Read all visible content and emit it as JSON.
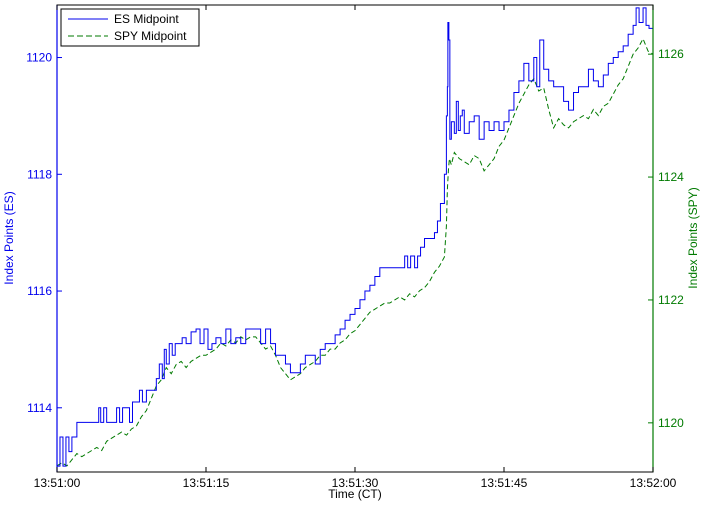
{
  "chart_data": {
    "type": "line",
    "xlabel": "Time (CT)",
    "ylabel_left": "Index Points (ES)",
    "ylabel_right": "Index Points (SPY)",
    "colors": {
      "ES": "#0000ee",
      "SPY": "#007a00"
    },
    "legend_position": "top-left",
    "grid": false,
    "x_ticks": [
      "13:51:00",
      "13:51:15",
      "13:51:30",
      "13:51:45",
      "13:52:00"
    ],
    "x_tick_seconds": [
      0,
      15,
      30,
      45,
      60
    ],
    "xlim_seconds": [
      0,
      60
    ],
    "ylim_left": [
      1112.9,
      1120.9
    ],
    "y_ticks_left": [
      1114,
      1116,
      1118,
      1120
    ],
    "ylim_right": [
      1119.2,
      1126.8
    ],
    "y_ticks_right": [
      1120,
      1122,
      1124,
      1126
    ],
    "series": [
      {
        "name": "ES Midpoint",
        "axis": "left",
        "style": "solid",
        "points": [
          [
            0.0,
            1113.0
          ],
          [
            0.3,
            1113.5
          ],
          [
            0.6,
            1113.0
          ],
          [
            0.9,
            1113.5
          ],
          [
            1.2,
            1113.25
          ],
          [
            1.5,
            1113.5
          ],
          [
            2.0,
            1113.75
          ],
          [
            3.5,
            1113.75
          ],
          [
            4.0,
            1113.75
          ],
          [
            4.2,
            1114.0
          ],
          [
            4.4,
            1113.75
          ],
          [
            4.7,
            1114.0
          ],
          [
            5.0,
            1113.75
          ],
          [
            5.5,
            1113.75
          ],
          [
            6.0,
            1114.0
          ],
          [
            6.3,
            1113.75
          ],
          [
            6.6,
            1114.0
          ],
          [
            7.0,
            1114.0
          ],
          [
            7.3,
            1113.75
          ],
          [
            7.6,
            1114.1
          ],
          [
            8.0,
            1114.1
          ],
          [
            8.3,
            1114.3
          ],
          [
            8.6,
            1114.1
          ],
          [
            9.0,
            1114.3
          ],
          [
            9.5,
            1114.3
          ],
          [
            10.0,
            1114.5
          ],
          [
            10.3,
            1114.75
          ],
          [
            10.6,
            1114.5
          ],
          [
            10.8,
            1115.0
          ],
          [
            11.0,
            1114.75
          ],
          [
            11.3,
            1115.1
          ],
          [
            11.6,
            1114.9
          ],
          [
            11.9,
            1115.1
          ],
          [
            12.3,
            1115.1
          ],
          [
            12.6,
            1115.2
          ],
          [
            13.0,
            1115.1
          ],
          [
            13.5,
            1115.3
          ],
          [
            14.0,
            1115.35
          ],
          [
            14.4,
            1115.1
          ],
          [
            14.8,
            1115.35
          ],
          [
            15.2,
            1115.0
          ],
          [
            15.6,
            1115.1
          ],
          [
            16.0,
            1115.2
          ],
          [
            16.5,
            1115.1
          ],
          [
            17.0,
            1115.35
          ],
          [
            17.5,
            1115.1
          ],
          [
            18.0,
            1115.2
          ],
          [
            18.5,
            1115.1
          ],
          [
            19.0,
            1115.35
          ],
          [
            19.5,
            1115.35
          ],
          [
            20.0,
            1115.35
          ],
          [
            20.5,
            1115.1
          ],
          [
            21.0,
            1115.35
          ],
          [
            21.5,
            1115.1
          ],
          [
            22.0,
            1114.9
          ],
          [
            22.5,
            1114.9
          ],
          [
            23.0,
            1114.75
          ],
          [
            23.5,
            1114.6
          ],
          [
            24.0,
            1114.6
          ],
          [
            24.5,
            1114.75
          ],
          [
            25.0,
            1114.9
          ],
          [
            25.5,
            1114.9
          ],
          [
            26.0,
            1114.75
          ],
          [
            26.5,
            1115.0
          ],
          [
            27.0,
            1115.1
          ],
          [
            27.5,
            1115.1
          ],
          [
            28.0,
            1115.25
          ],
          [
            28.5,
            1115.35
          ],
          [
            29.0,
            1115.5
          ],
          [
            29.5,
            1115.6
          ],
          [
            30.0,
            1115.7
          ],
          [
            30.5,
            1115.85
          ],
          [
            31.0,
            1116.0
          ],
          [
            31.5,
            1116.1
          ],
          [
            32.0,
            1116.25
          ],
          [
            32.5,
            1116.4
          ],
          [
            33.0,
            1116.4
          ],
          [
            33.5,
            1116.4
          ],
          [
            34.0,
            1116.4
          ],
          [
            34.5,
            1116.4
          ],
          [
            35.0,
            1116.6
          ],
          [
            35.3,
            1116.4
          ],
          [
            35.6,
            1116.6
          ],
          [
            36.0,
            1116.4
          ],
          [
            36.3,
            1116.6
          ],
          [
            36.6,
            1116.75
          ],
          [
            37.0,
            1116.9
          ],
          [
            37.5,
            1116.9
          ],
          [
            38.0,
            1117.0
          ],
          [
            38.3,
            1117.2
          ],
          [
            38.6,
            1117.5
          ],
          [
            39.0,
            1118.0
          ],
          [
            39.2,
            1119.0
          ],
          [
            39.3,
            1119.5
          ],
          [
            39.35,
            1120.6
          ],
          [
            39.45,
            1120.3
          ],
          [
            39.55,
            1118.6
          ],
          [
            39.7,
            1118.9
          ],
          [
            40.0,
            1118.7
          ],
          [
            40.2,
            1119.25
          ],
          [
            40.4,
            1118.75
          ],
          [
            40.6,
            1119.0
          ],
          [
            40.8,
            1119.1
          ],
          [
            41.0,
            1118.7
          ],
          [
            41.5,
            1118.9
          ],
          [
            42.0,
            1119.0
          ],
          [
            42.5,
            1118.6
          ],
          [
            43.0,
            1118.9
          ],
          [
            43.5,
            1118.75
          ],
          [
            44.0,
            1118.9
          ],
          [
            44.5,
            1118.75
          ],
          [
            45.0,
            1118.9
          ],
          [
            45.5,
            1119.1
          ],
          [
            46.0,
            1119.4
          ],
          [
            46.5,
            1119.6
          ],
          [
            47.0,
            1119.9
          ],
          [
            47.5,
            1119.6
          ],
          [
            48.0,
            1120.0
          ],
          [
            48.3,
            1119.5
          ],
          [
            48.6,
            1120.3
          ],
          [
            49.0,
            1119.8
          ],
          [
            49.5,
            1119.6
          ],
          [
            50.0,
            1119.5
          ],
          [
            50.5,
            1119.5
          ],
          [
            51.0,
            1119.25
          ],
          [
            51.5,
            1119.1
          ],
          [
            52.0,
            1119.4
          ],
          [
            52.5,
            1119.5
          ],
          [
            53.0,
            1119.5
          ],
          [
            53.5,
            1119.8
          ],
          [
            54.0,
            1119.6
          ],
          [
            54.5,
            1119.5
          ],
          [
            55.0,
            1119.7
          ],
          [
            55.5,
            1119.9
          ],
          [
            56.0,
            1120.0
          ],
          [
            56.5,
            1120.1
          ],
          [
            57.0,
            1120.2
          ],
          [
            57.5,
            1120.4
          ],
          [
            58.0,
            1120.55
          ],
          [
            58.3,
            1120.85
          ],
          [
            58.6,
            1120.6
          ],
          [
            59.0,
            1120.85
          ],
          [
            59.3,
            1120.55
          ],
          [
            59.6,
            1120.5
          ],
          [
            60.0,
            1120.5
          ]
        ]
      },
      {
        "name": "SPY Midpoint",
        "axis": "right",
        "style": "dashed",
        "points": [
          [
            0.0,
            1119.3
          ],
          [
            0.5,
            1119.35
          ],
          [
            1.0,
            1119.3
          ],
          [
            1.5,
            1119.4
          ],
          [
            2.0,
            1119.5
          ],
          [
            2.5,
            1119.45
          ],
          [
            3.0,
            1119.5
          ],
          [
            3.5,
            1119.55
          ],
          [
            4.0,
            1119.6
          ],
          [
            4.5,
            1119.55
          ],
          [
            5.0,
            1119.7
          ],
          [
            5.5,
            1119.75
          ],
          [
            6.0,
            1119.8
          ],
          [
            6.5,
            1119.85
          ],
          [
            7.0,
            1119.8
          ],
          [
            7.5,
            1119.9
          ],
          [
            8.0,
            1119.95
          ],
          [
            8.5,
            1120.1
          ],
          [
            9.0,
            1120.2
          ],
          [
            9.5,
            1120.4
          ],
          [
            10.0,
            1120.6
          ],
          [
            10.5,
            1120.7
          ],
          [
            11.0,
            1120.9
          ],
          [
            11.5,
            1120.8
          ],
          [
            12.0,
            1120.95
          ],
          [
            12.5,
            1121.0
          ],
          [
            13.0,
            1120.9
          ],
          [
            13.5,
            1121.0
          ],
          [
            14.0,
            1121.05
          ],
          [
            14.5,
            1121.1
          ],
          [
            15.0,
            1121.1
          ],
          [
            15.5,
            1121.15
          ],
          [
            16.0,
            1121.2
          ],
          [
            16.5,
            1121.3
          ],
          [
            17.0,
            1121.25
          ],
          [
            17.5,
            1121.35
          ],
          [
            18.0,
            1121.3
          ],
          [
            18.5,
            1121.4
          ],
          [
            19.0,
            1121.35
          ],
          [
            19.5,
            1121.4
          ],
          [
            20.0,
            1121.4
          ],
          [
            20.5,
            1121.3
          ],
          [
            21.0,
            1121.2
          ],
          [
            21.5,
            1121.25
          ],
          [
            22.0,
            1121.1
          ],
          [
            22.5,
            1120.9
          ],
          [
            23.0,
            1120.8
          ],
          [
            23.5,
            1120.7
          ],
          [
            24.0,
            1120.75
          ],
          [
            24.5,
            1120.8
          ],
          [
            25.0,
            1120.9
          ],
          [
            25.5,
            1120.95
          ],
          [
            26.0,
            1121.0
          ],
          [
            26.5,
            1121.1
          ],
          [
            27.0,
            1121.1
          ],
          [
            27.5,
            1121.2
          ],
          [
            28.0,
            1121.2
          ],
          [
            28.5,
            1121.3
          ],
          [
            29.0,
            1121.35
          ],
          [
            29.5,
            1121.45
          ],
          [
            30.0,
            1121.5
          ],
          [
            30.5,
            1121.6
          ],
          [
            31.0,
            1121.7
          ],
          [
            31.5,
            1121.8
          ],
          [
            32.0,
            1121.85
          ],
          [
            32.5,
            1121.9
          ],
          [
            33.0,
            1121.95
          ],
          [
            33.5,
            1121.95
          ],
          [
            34.0,
            1122.0
          ],
          [
            34.5,
            1122.05
          ],
          [
            35.0,
            1122.0
          ],
          [
            35.5,
            1122.1
          ],
          [
            36.0,
            1122.05
          ],
          [
            36.5,
            1122.15
          ],
          [
            37.0,
            1122.2
          ],
          [
            37.5,
            1122.3
          ],
          [
            38.0,
            1122.45
          ],
          [
            38.5,
            1122.55
          ],
          [
            39.0,
            1122.7
          ],
          [
            39.2,
            1123.2
          ],
          [
            39.3,
            1123.8
          ],
          [
            39.4,
            1124.1
          ],
          [
            39.5,
            1124.3
          ],
          [
            39.7,
            1124.2
          ],
          [
            40.0,
            1124.4
          ],
          [
            40.5,
            1124.3
          ],
          [
            41.0,
            1124.25
          ],
          [
            41.5,
            1124.2
          ],
          [
            42.0,
            1124.35
          ],
          [
            42.5,
            1124.3
          ],
          [
            43.0,
            1124.1
          ],
          [
            43.5,
            1124.2
          ],
          [
            44.0,
            1124.3
          ],
          [
            44.5,
            1124.5
          ],
          [
            45.0,
            1124.6
          ],
          [
            45.5,
            1124.8
          ],
          [
            46.0,
            1125.0
          ],
          [
            46.5,
            1125.2
          ],
          [
            47.0,
            1125.35
          ],
          [
            47.5,
            1125.5
          ],
          [
            48.0,
            1125.6
          ],
          [
            48.5,
            1125.4
          ],
          [
            49.0,
            1125.45
          ],
          [
            49.5,
            1125.1
          ],
          [
            50.0,
            1124.8
          ],
          [
            50.5,
            1124.95
          ],
          [
            51.0,
            1124.85
          ],
          [
            51.5,
            1124.8
          ],
          [
            52.0,
            1124.9
          ],
          [
            52.5,
            1124.95
          ],
          [
            53.0,
            1125.0
          ],
          [
            53.5,
            1124.95
          ],
          [
            54.0,
            1125.1
          ],
          [
            54.5,
            1125.0
          ],
          [
            55.0,
            1125.15
          ],
          [
            55.5,
            1125.2
          ],
          [
            56.0,
            1125.35
          ],
          [
            56.5,
            1125.5
          ],
          [
            57.0,
            1125.6
          ],
          [
            57.5,
            1125.8
          ],
          [
            58.0,
            1126.0
          ],
          [
            58.5,
            1126.1
          ],
          [
            59.0,
            1126.25
          ],
          [
            59.5,
            1126.05
          ],
          [
            60.0,
            1126.0
          ]
        ]
      }
    ]
  }
}
